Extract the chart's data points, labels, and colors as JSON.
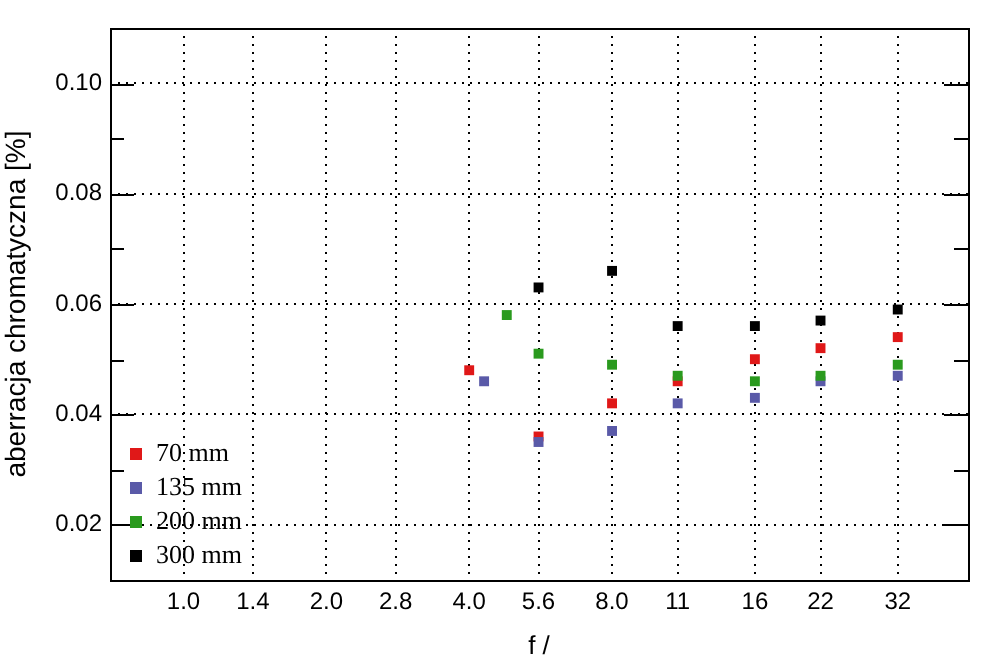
{
  "chart_data": {
    "type": "scatter",
    "xlabel": "f /",
    "ylabel": "aberracja chromatyczna [%]",
    "log": "x",
    "xlim": [
      0.71,
      45
    ],
    "xticks": [
      {
        "value": 1,
        "label": "1.0"
      },
      1.4,
      {
        "value": 2,
        "label": "2.0"
      },
      2.8,
      {
        "value": 4,
        "label": "4.0"
      },
      5.6,
      {
        "value": 8,
        "label": "8.0"
      },
      11,
      16,
      22,
      32
    ],
    "ylim": [
      0.01,
      0.11
    ],
    "yticks": [
      {
        "value": 0.02,
        "label": "0.02"
      },
      {
        "value": 0.03,
        "label": null
      },
      {
        "value": 0.04,
        "label": "0.04"
      },
      {
        "value": 0.05,
        "label": null
      },
      {
        "value": 0.06,
        "label": "0.06"
      },
      {
        "value": 0.07,
        "label": null
      },
      {
        "value": 0.08,
        "label": "0.08"
      },
      {
        "value": 0.09,
        "label": null
      },
      {
        "value": 0.1,
        "label": "0.10"
      }
    ],
    "grid": true,
    "legend": "bottom left",
    "marker": "square",
    "series": [
      {
        "name": "70 mm",
        "color": "#e01818",
        "x": [
          4,
          5.6,
          8,
          11,
          16,
          22,
          32
        ],
        "values": [
          0.048,
          0.036,
          0.042,
          0.046,
          0.05,
          0.052,
          0.054
        ]
      },
      {
        "name": "135 mm",
        "color": "#5a5aa8",
        "x": [
          4.3,
          5.6,
          8,
          11,
          16,
          22,
          32
        ],
        "values": [
          0.046,
          0.035,
          0.037,
          0.042,
          0.043,
          0.046,
          0.047
        ]
      },
      {
        "name": "200 mm",
        "color": "#2a9a1e",
        "x": [
          4.8,
          5.6,
          8,
          11,
          16,
          22,
          32
        ],
        "values": [
          0.058,
          0.051,
          0.049,
          0.047,
          0.046,
          0.047,
          0.049
        ]
      },
      {
        "name": "300 mm",
        "color": "#000000",
        "x": [
          5.6,
          8,
          11,
          16,
          22,
          32
        ],
        "values": [
          0.063,
          0.066,
          0.056,
          0.056,
          0.057,
          0.059
        ]
      }
    ]
  }
}
